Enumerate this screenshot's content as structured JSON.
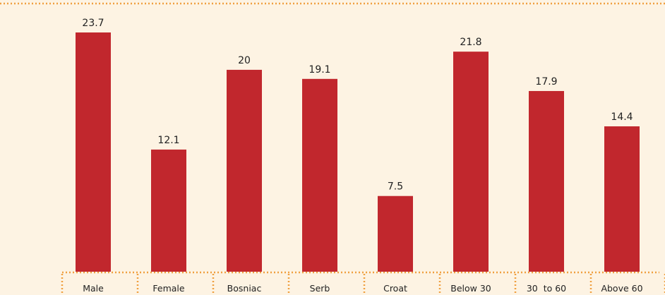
{
  "chart_data": {
    "type": "bar",
    "categories": [
      "Male",
      "Female",
      "Bosniac",
      "Serb",
      "Croat",
      "Below 30",
      "30  to 60",
      "Above 60"
    ],
    "values": [
      23.7,
      12.1,
      20,
      19.1,
      7.5,
      21.8,
      17.9,
      14.4
    ],
    "color": "#c1272d"
  }
}
